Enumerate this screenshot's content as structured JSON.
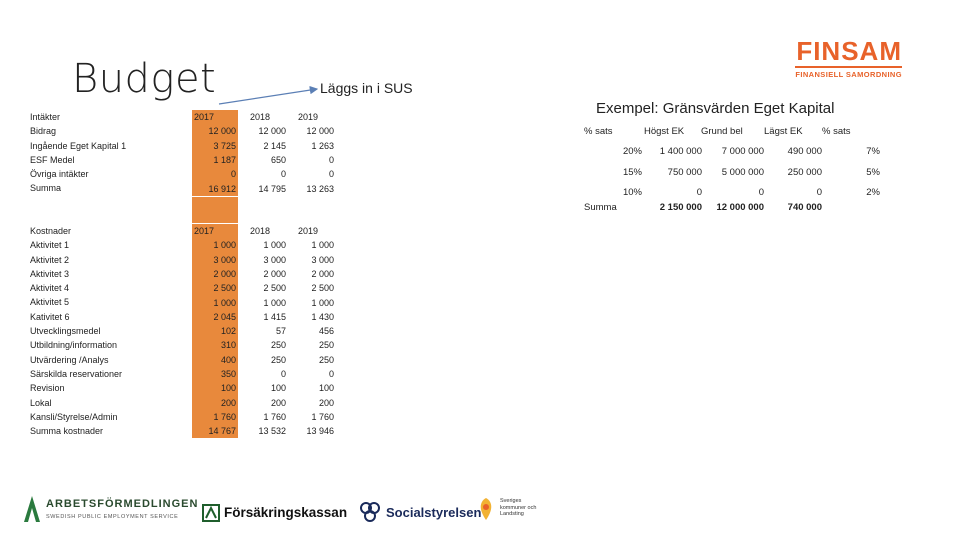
{
  "slide": {
    "title": "Budget",
    "note": "Läggs in i SUS",
    "example_title": "Exempel: Gränsvärden Eget Kapital"
  },
  "income": {
    "labels": [
      "Intäkter",
      "Bidrag",
      "Ingående Eget Kapital 1",
      "ESF Medel",
      "Övriga intäkter",
      "Summa"
    ],
    "years": [
      "2017",
      "2018",
      "2019"
    ],
    "rows": [
      [
        "12 000",
        "12 000",
        "12 000"
      ],
      [
        "3 725",
        "2 145",
        "1 263"
      ],
      [
        "1 187",
        "650",
        "0"
      ],
      [
        "0",
        "0",
        "0"
      ],
      [
        "16 912",
        "14 795",
        "13 263"
      ]
    ]
  },
  "costs": {
    "labels": [
      "Kostnader",
      "Aktivitet 1",
      "Aktivitet 2",
      "Aktivitet 3",
      "Aktivitet 4",
      "Aktivitet 5",
      "Kativitet 6",
      "Utvecklingsmedel",
      "Utbildning/information",
      "Utvärdering /Analys",
      "Särskilda reservationer",
      "Revision",
      "Lokal",
      "Kansli/Styrelse/Admin",
      "Summa kostnader"
    ],
    "years": [
      "2017",
      "2018",
      "2019"
    ],
    "rows": [
      [
        "1 000",
        "1 000",
        "1 000"
      ],
      [
        "3 000",
        "3 000",
        "3 000"
      ],
      [
        "2 000",
        "2 000",
        "2 000"
      ],
      [
        "2 500",
        "2 500",
        "2 500"
      ],
      [
        "1 000",
        "1 000",
        "1 000"
      ],
      [
        "2 045",
        "1 415",
        "1 430"
      ],
      [
        "102",
        "57",
        "456"
      ],
      [
        "310",
        "250",
        "250"
      ],
      [
        "400",
        "250",
        "250"
      ],
      [
        "350",
        "0",
        "0"
      ],
      [
        "100",
        "100",
        "100"
      ],
      [
        "200",
        "200",
        "200"
      ],
      [
        "1 760",
        "1 760",
        "1 760"
      ],
      [
        "14 767",
        "13 532",
        "13 946"
      ]
    ]
  },
  "example": {
    "headers": [
      "% sats",
      "Högst EK",
      "Grund bel",
      "Lägst EK",
      "% sats"
    ],
    "rows": [
      [
        "20%",
        "1 400 000",
        "7 000 000",
        "490 000",
        "7%"
      ],
      [
        "15%",
        "750 000",
        "5 000 000",
        "250 000",
        "5%"
      ],
      [
        "10%",
        "0",
        "0",
        "0",
        "2%"
      ]
    ],
    "sum_label": "Summa",
    "sum_values": [
      "2 150 000",
      "12 000 000",
      "740 000"
    ]
  },
  "logos": {
    "finsam": "FINSAM",
    "finsam_sub": "FINANSIELL SAMORDNING",
    "af": "ARBETSFÖRMEDLINGEN",
    "af_sub": "SWEDISH PUBLIC EMPLOYMENT SERVICE",
    "fk": "Försäkringskassan",
    "ss": "Socialstyrelsen",
    "skl": "Sveriges kommuner och Landsting"
  },
  "colors": {
    "accent": "#e8893c",
    "arrow": "#5b7fb5",
    "finsam": "#e8622a"
  }
}
